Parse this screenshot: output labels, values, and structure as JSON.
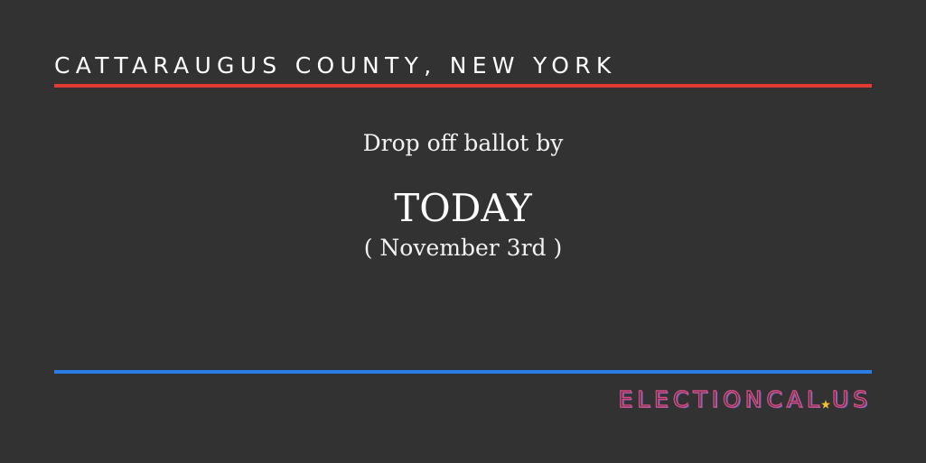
{
  "header": {
    "county": "CATTARAUGUS COUNTY, NEW YORK"
  },
  "main": {
    "prompt": "Drop off ballot by",
    "deadline": "TODAY",
    "deadline_date": "( November 3rd )"
  },
  "brand": {
    "name": "ELECTIONCAL",
    "tld": "US",
    "separator_icon": "star-icon"
  },
  "colors": {
    "background": "#323232",
    "red_accent": "#e23b35",
    "blue_accent": "#2b7de5",
    "star": "#f2c12e",
    "brand_pink": "#d54a86",
    "brand_blue": "#4d7bd1"
  }
}
